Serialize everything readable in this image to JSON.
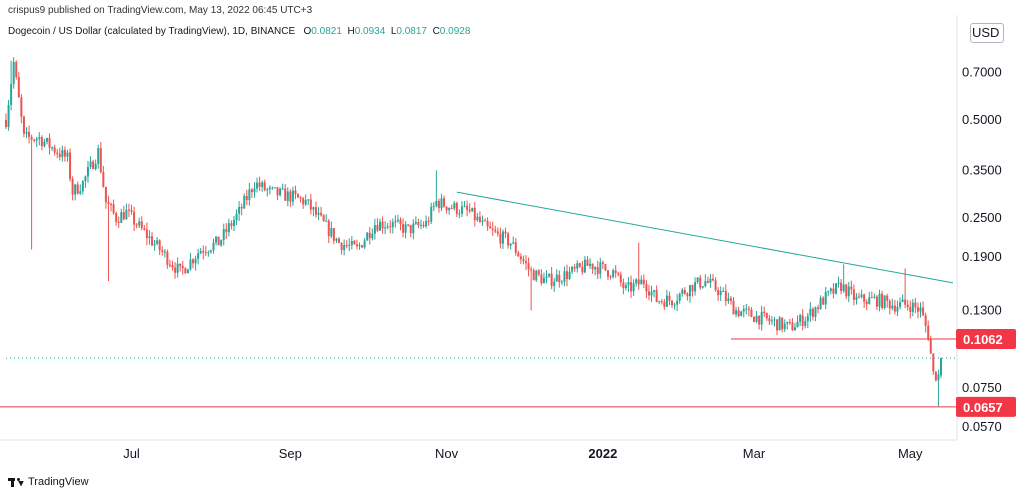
{
  "header": {
    "published": "crispus9 published on TradingView.com, May 13, 2022 06:45 UTC+3",
    "symbol": "Dogecoin / US Dollar (calculated by TradingView), 1D, BINANCE",
    "o_label": "O",
    "o_value": "0.0821",
    "h_label": "H",
    "h_value": "0.0934",
    "l_label": "L",
    "l_value": "0.0817",
    "c_label": "C",
    "c_value": "0.0928"
  },
  "currency": "USD",
  "footer": {
    "brand": "TradingView"
  },
  "colors": {
    "up": "#26a69a",
    "down": "#ef5350",
    "trend": "#26a69a",
    "support": "#f23645",
    "label_bg": "#f23645",
    "last_price": "#26a69a"
  },
  "chart_data": {
    "type": "candlestick",
    "title": "Dogecoin / US Dollar (calculated by TradingView), 1D, BINANCE",
    "ylabel": "USD",
    "y_scale": "log",
    "ylim": [
      0.052,
      1.05
    ],
    "y_ticks": [
      "0.7000",
      "0.5000",
      "0.3500",
      "0.2500",
      "0.1900",
      "0.1300",
      "0.0750",
      "0.0570"
    ],
    "x_ticks": [
      "Jul",
      "Sep",
      "Nov",
      "2022",
      "Mar",
      "May"
    ],
    "price_labels": [
      {
        "value": 0.1062,
        "text": "0.1062"
      },
      {
        "value": 0.0657,
        "text": "0.0657"
      }
    ],
    "horizontal_lines": [
      {
        "price": 0.1062,
        "from": "2022-02-20",
        "to": "2022-05-13"
      },
      {
        "price": 0.0657,
        "from": "2021-05-13",
        "to": "2022-05-13"
      }
    ],
    "trend_line": {
      "from": {
        "date": "2021-11-05",
        "price": 0.3
      },
      "to": {
        "date": "2022-05-13",
        "price": 0.158
      }
    },
    "last_price": 0.0928,
    "path": [
      [
        "2021-05-13",
        0.5
      ],
      [
        "2021-05-16",
        0.75
      ],
      [
        "2021-05-20",
        0.44
      ],
      [
        "2021-05-26",
        0.44
      ],
      [
        "2021-06-02",
        0.4
      ],
      [
        "2021-06-06",
        0.38
      ],
      [
        "2021-06-08",
        0.3
      ],
      [
        "2021-06-12",
        0.32
      ],
      [
        "2021-06-18",
        0.4
      ],
      [
        "2021-06-21",
        0.28
      ],
      [
        "2021-06-25",
        0.25
      ],
      [
        "2021-06-29",
        0.26
      ],
      [
        "2021-07-05",
        0.23
      ],
      [
        "2021-07-12",
        0.2
      ],
      [
        "2021-07-20",
        0.17
      ],
      [
        "2021-07-28",
        0.2
      ],
      [
        "2021-08-04",
        0.21
      ],
      [
        "2021-08-12",
        0.26
      ],
      [
        "2021-08-18",
        0.32
      ],
      [
        "2021-08-24",
        0.3
      ],
      [
        "2021-09-02",
        0.29
      ],
      [
        "2021-09-07",
        0.28
      ],
      [
        "2021-09-12",
        0.25
      ],
      [
        "2021-09-20",
        0.21
      ],
      [
        "2021-09-27",
        0.2
      ],
      [
        "2021-10-04",
        0.24
      ],
      [
        "2021-10-10",
        0.24
      ],
      [
        "2021-10-17",
        0.23
      ],
      [
        "2021-10-24",
        0.24
      ],
      [
        "2021-10-28",
        0.28
      ],
      [
        "2021-11-03",
        0.27
      ],
      [
        "2021-11-10",
        0.26
      ],
      [
        "2021-11-17",
        0.23
      ],
      [
        "2021-11-26",
        0.21
      ],
      [
        "2021-12-04",
        0.17
      ],
      [
        "2021-12-10",
        0.16
      ],
      [
        "2021-12-20",
        0.17
      ],
      [
        "2021-12-27",
        0.18
      ],
      [
        "2022-01-05",
        0.17
      ],
      [
        "2022-01-10",
        0.15
      ],
      [
        "2022-01-17",
        0.16
      ],
      [
        "2022-01-22",
        0.14
      ],
      [
        "2022-01-28",
        0.14
      ],
      [
        "2022-02-05",
        0.155
      ],
      [
        "2022-02-10",
        0.16
      ],
      [
        "2022-02-15",
        0.15
      ],
      [
        "2022-02-22",
        0.13
      ],
      [
        "2022-03-01",
        0.125
      ],
      [
        "2022-03-08",
        0.12
      ],
      [
        "2022-03-15",
        0.115
      ],
      [
        "2022-03-22",
        0.125
      ],
      [
        "2022-03-28",
        0.14
      ],
      [
        "2022-04-04",
        0.155
      ],
      [
        "2022-04-10",
        0.14
      ],
      [
        "2022-04-18",
        0.14
      ],
      [
        "2022-04-25",
        0.135
      ],
      [
        "2022-05-01",
        0.135
      ],
      [
        "2022-05-05",
        0.13
      ],
      [
        "2022-05-08",
        0.11
      ],
      [
        "2022-05-10",
        0.083
      ],
      [
        "2022-05-12",
        0.0821
      ],
      [
        "2022-05-13",
        0.0928
      ]
    ],
    "spikes": [
      {
        "date": "2021-05-15",
        "high": 0.76
      },
      {
        "date": "2021-05-23",
        "low": 0.2
      },
      {
        "date": "2021-06-22",
        "low": 0.16
      },
      {
        "date": "2021-10-28",
        "high": 0.35
      },
      {
        "date": "2021-12-04",
        "low": 0.13
      },
      {
        "date": "2022-01-15",
        "high": 0.21
      },
      {
        "date": "2022-04-05",
        "high": 0.18
      },
      {
        "date": "2022-04-29",
        "high": 0.175
      },
      {
        "date": "2022-05-12",
        "low": 0.066
      }
    ]
  }
}
